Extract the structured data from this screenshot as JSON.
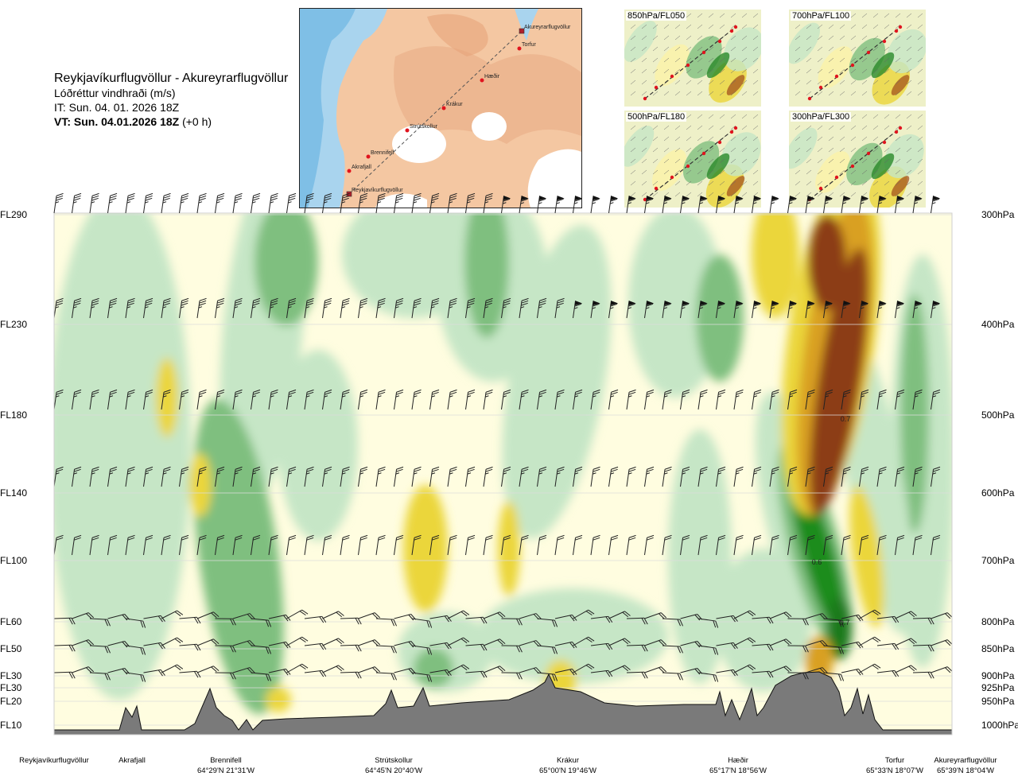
{
  "title": {
    "route": "Reykjavíkurflugvöllur - Akureyrarflugvöllur",
    "variable": "Lóðréttur vindhraði (m/s)",
    "it": "IT: Sun. 04. 01. 2026 18Z",
    "vt_bold": "VT: Sun. 04.01.2026 18Z",
    "vt_suffix": " (+0 h)"
  },
  "colors": {
    "strong_down_dark": "#1a8c1a",
    "down_mid": "#7fbf7f",
    "down_light": "#c6e6c6",
    "neutral": "#fffde0",
    "up_light": "#fbf2a8",
    "up_mid": "#ebd63a",
    "up_strong": "#d9a020",
    "up_very_strong": "#8c3c12",
    "terrain": "#7a7a7a"
  },
  "map": {
    "places": [
      {
        "name": "Akureyrarflugvöllur"
      },
      {
        "name": "Torfur"
      },
      {
        "name": "Hæðir"
      },
      {
        "name": "Krákur"
      },
      {
        "name": "Strútskollur"
      },
      {
        "name": "Brennifell"
      },
      {
        "name": "Akrafjall"
      },
      {
        "name": "Reykjavíkurflugvöllur"
      }
    ]
  },
  "minimaps": [
    {
      "label": "850hPa/FL050"
    },
    {
      "label": "700hPa/FL100"
    },
    {
      "label": "500hPa/FL180"
    },
    {
      "label": "300hPa/FL300"
    }
  ],
  "chart_data": {
    "type": "heatmap",
    "title": "Lóðréttur vindhraði (m/s)",
    "levels": [
      {
        "fl": "FL290",
        "hpa": "300hPa"
      },
      {
        "fl": "FL230",
        "hpa": "400hPa"
      },
      {
        "fl": "FL180",
        "hpa": "500hPa"
      },
      {
        "fl": "FL140",
        "hpa": "600hPa"
      },
      {
        "fl": "FL100",
        "hpa": "700hPa"
      },
      {
        "fl": "FL60",
        "hpa": "800hPa"
      },
      {
        "fl": "FL50",
        "hpa": "850hPa"
      },
      {
        "fl": "FL30",
        "hpa": "900hPa"
      },
      {
        "fl": "FL30",
        "hpa": "925hPa"
      },
      {
        "fl": "FL20",
        "hpa": "950hPa"
      },
      {
        "fl": "FL10",
        "hpa": "1000hPa"
      }
    ],
    "contour_labels": [
      "0.7",
      "0.6",
      "0.7"
    ],
    "locations": [
      {
        "name": "Reykjavíkurflugvöllur",
        "coord": ""
      },
      {
        "name": "Akrafjall",
        "coord": ""
      },
      {
        "name": "Brennifell",
        "coord": "64°29'N 21°31'W"
      },
      {
        "name": "Strútskollur",
        "coord": "64°45'N 20°40'W"
      },
      {
        "name": "Krákur",
        "coord": "65°00'N 19°46'W"
      },
      {
        "name": "Hæðir",
        "coord": "65°17'N 18°56'W"
      },
      {
        "name": "Torfur",
        "coord": "65°33'N 18°07'W"
      },
      {
        "name": "Akureyrarflugvöllur",
        "coord": "65°39'N 18°04'W"
      }
    ]
  }
}
